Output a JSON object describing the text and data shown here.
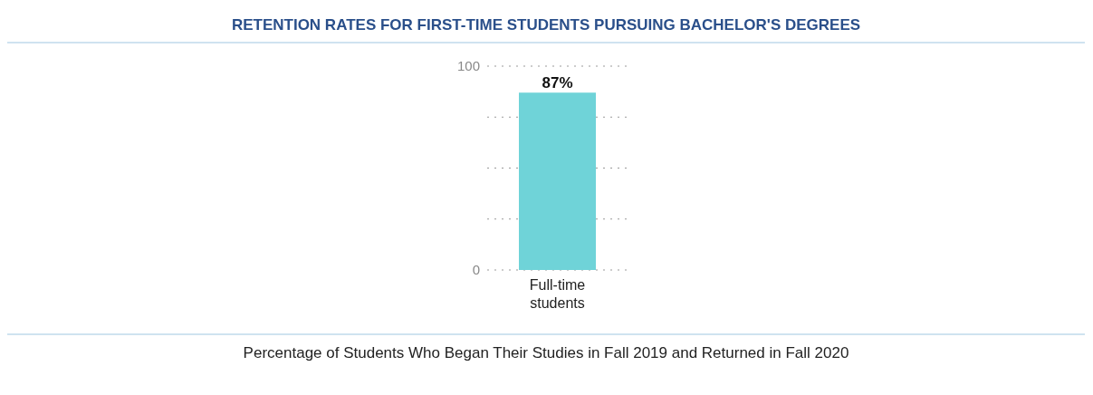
{
  "chart_data": {
    "type": "bar",
    "title": "RETENTION RATES FOR FIRST-TIME STUDENTS PURSUING BACHELOR'S DEGREES",
    "categories": [
      "Full-time students"
    ],
    "values": [
      87
    ],
    "value_labels": [
      "87%"
    ],
    "color": "#6fd3d8",
    "ylim": [
      0,
      100
    ],
    "yticks": [
      0,
      {
        "value": 25,
        "label": null
      },
      {
        "value": 50,
        "label": null
      },
      {
        "value": 75,
        "label": null
      },
      100
    ],
    "grid": "y",
    "annotations": [
      "Percentage of Students Who Began Their Studies in Fall 2019 and Returned in Fall 2020"
    ]
  }
}
